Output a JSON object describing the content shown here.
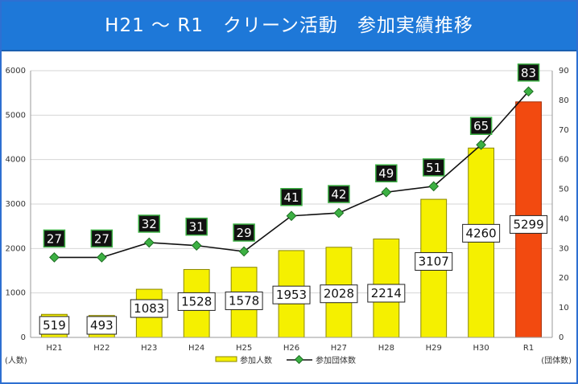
{
  "title": "H21 ～ R1　クリーン活動　参加実績推移",
  "chart_data": {
    "type": "bar",
    "categories": [
      "H21",
      "H22",
      "H23",
      "H24",
      "H25",
      "H26",
      "H27",
      "H28",
      "H29",
      "H30",
      "R1"
    ],
    "series": [
      {
        "name": "参加人数",
        "type": "bar",
        "axis": "left",
        "values": [
          519,
          493,
          1083,
          1528,
          1578,
          1953,
          2028,
          2214,
          3107,
          4260,
          5299
        ],
        "color": "#f5f000",
        "highlight_color": "#f24a10"
      },
      {
        "name": "参加団体数",
        "type": "line",
        "axis": "right",
        "values": [
          27,
          27,
          32,
          31,
          29,
          41,
          42,
          49,
          51,
          65,
          83
        ],
        "color": "#111111",
        "marker_color": "#3cb043"
      }
    ],
    "y_left": {
      "unit": "(人数)",
      "ylim": [
        0,
        6000
      ],
      "ticks": [
        0,
        1000,
        2000,
        3000,
        4000,
        5000,
        6000
      ]
    },
    "y_right": {
      "unit": "(団体数)",
      "ylim": [
        0,
        90
      ],
      "ticks": [
        0,
        10,
        20,
        30,
        40,
        50,
        60,
        70,
        80,
        90
      ]
    },
    "grid": true,
    "legend": "bottom-center"
  }
}
